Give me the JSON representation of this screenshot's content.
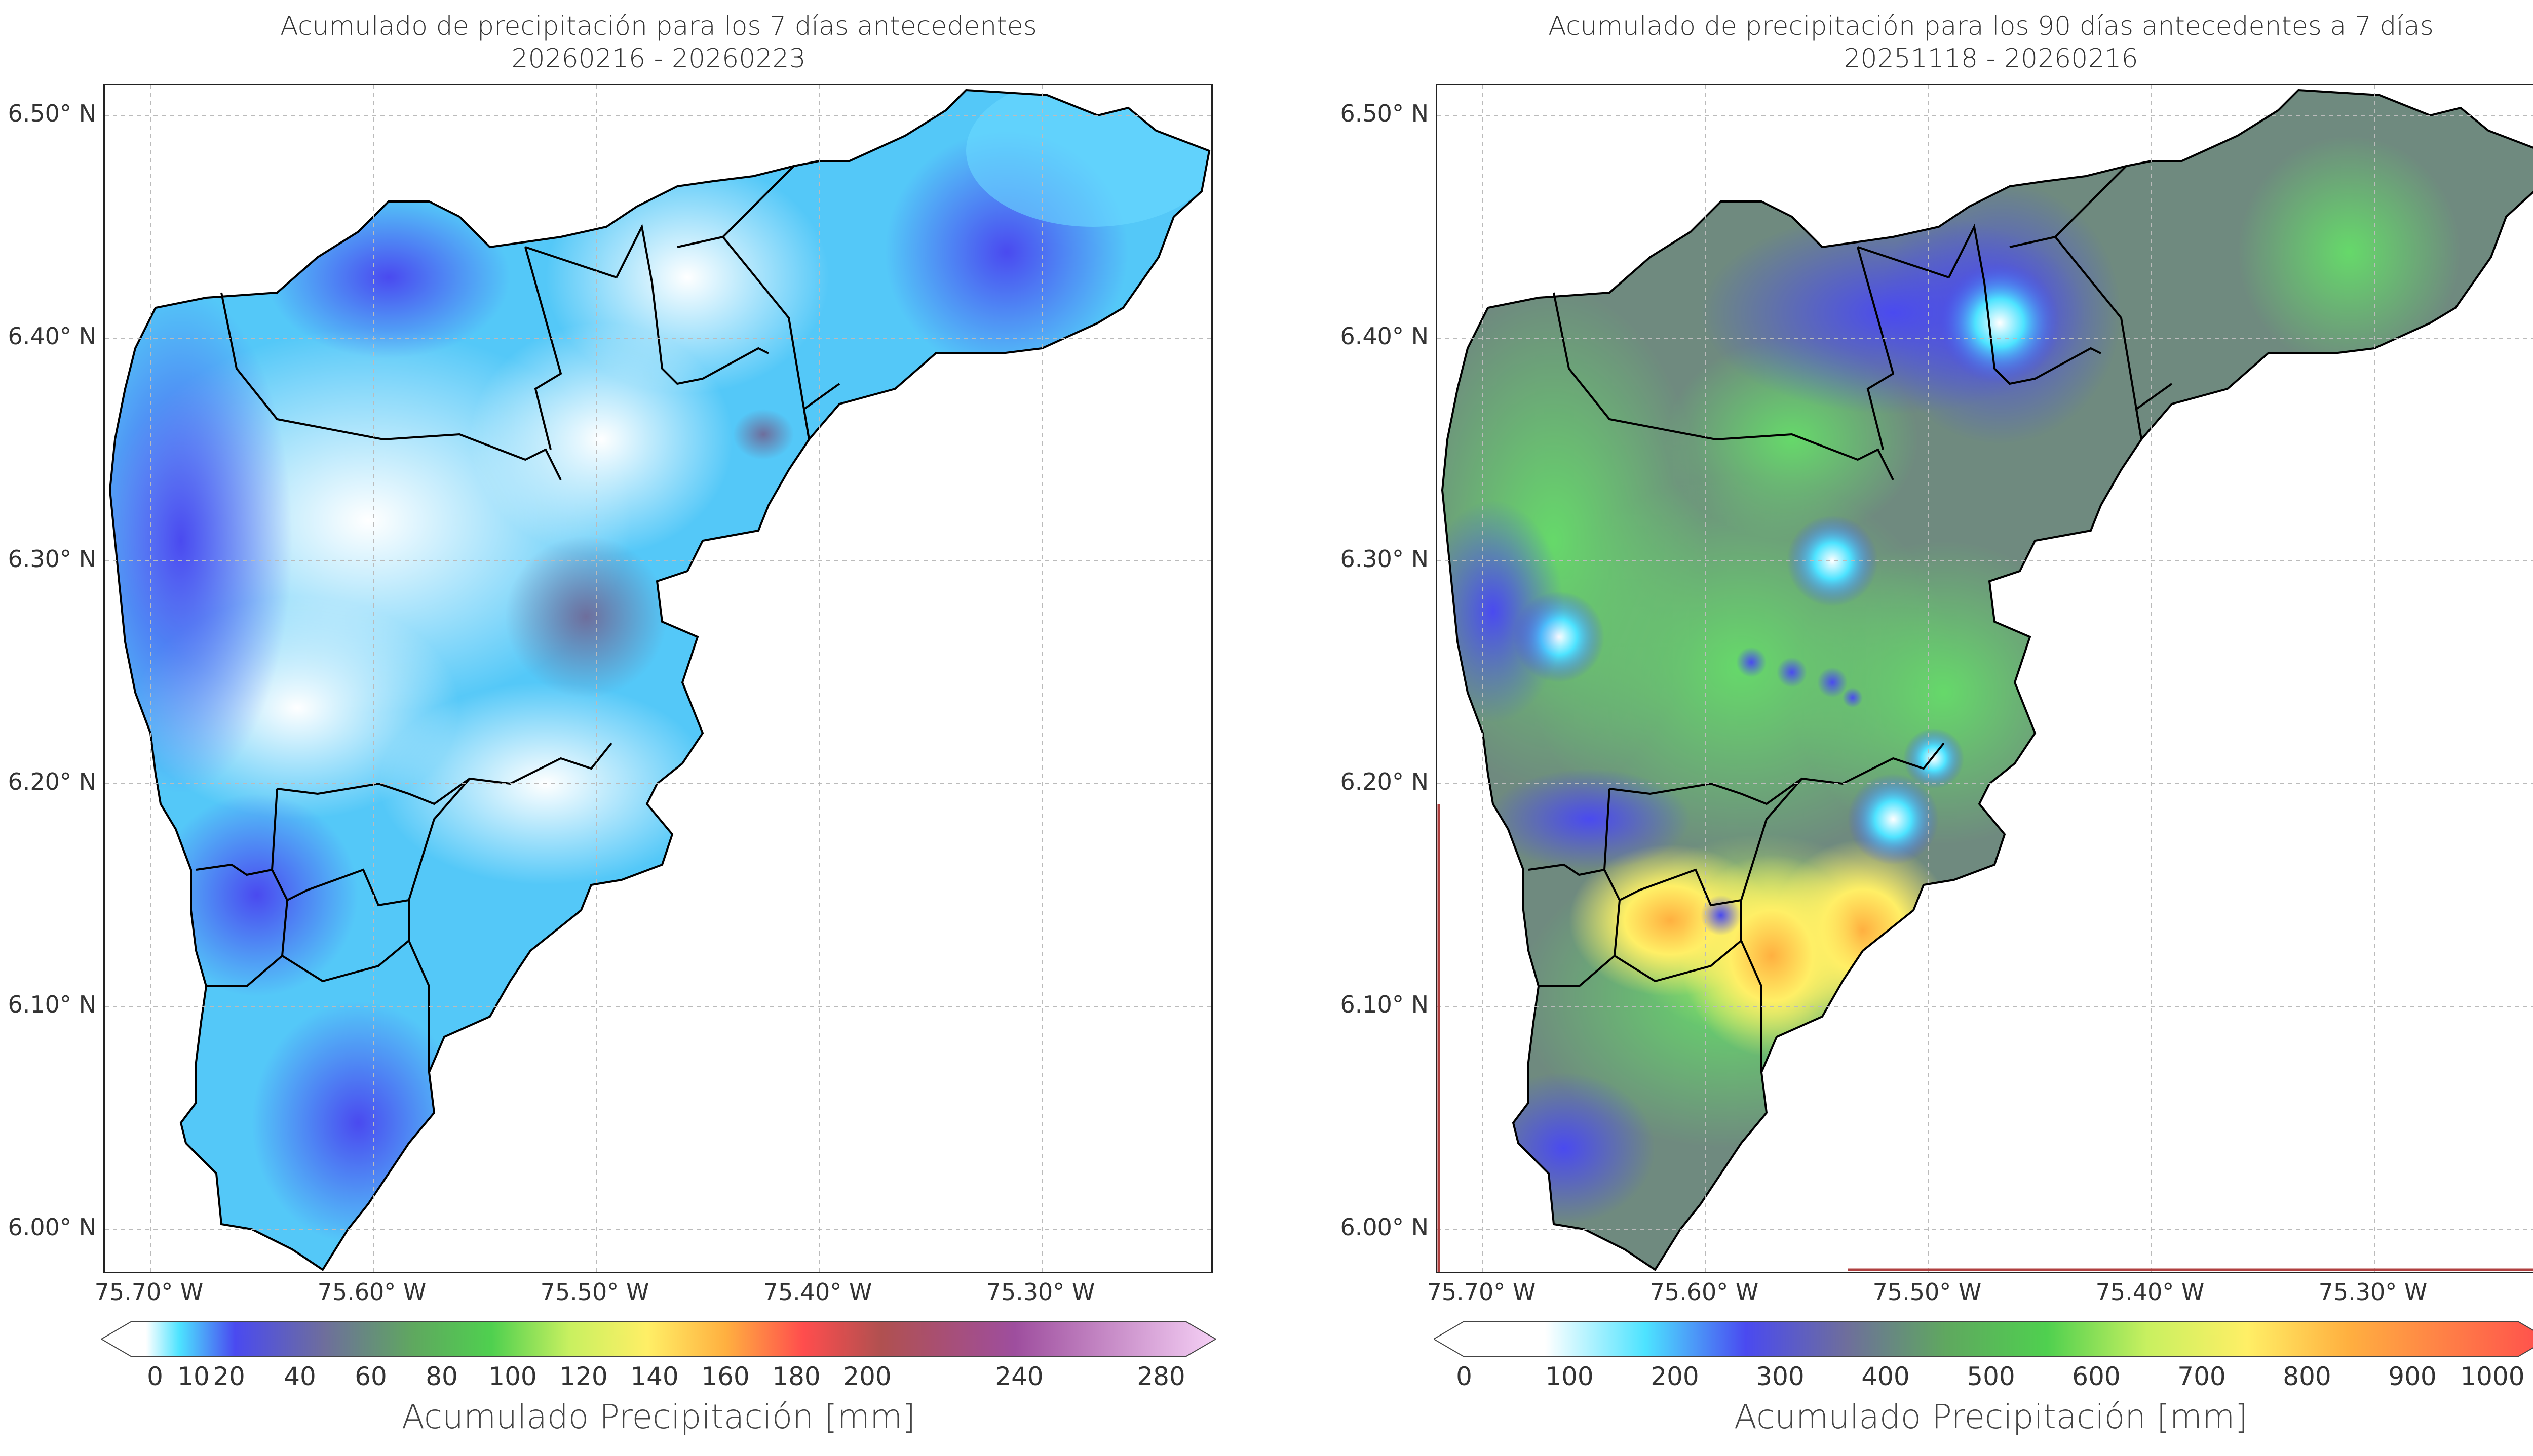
{
  "panels": [
    {
      "title_line1": "Acumulado de precipitación para los 7 días antecedentes",
      "title_line2": "20260216 - 20260223",
      "lat_labels": [
        "6.50° N",
        "6.40° N",
        "6.30° N",
        "6.20° N",
        "6.10° N",
        "6.00° N"
      ],
      "lon_labels": [
        "75.70° W",
        "75.60° W",
        "75.50° W",
        "75.40° W",
        "75.30° W"
      ],
      "colorbar": {
        "ticks": [
          "0",
          "10",
          "20",
          "40",
          "60",
          "80",
          "100",
          "120",
          "140",
          "160",
          "180",
          "200",
          "240",
          "280"
        ],
        "title": "Acumulado Precipitación [mm]",
        "extend": "both",
        "colors": [
          "#ffffff",
          "#4de3ff",
          "#4a4af0",
          "#6e6e9c",
          "#6a9a6a",
          "#4fd04f",
          "#c0f060",
          "#ffff66",
          "#ffc040",
          "#ff9940",
          "#ff4d4d",
          "#b05050",
          "#9e4e9e",
          "#d080d0",
          "#f5d0f5"
        ]
      }
    },
    {
      "title_line1": "Acumulado de precipitación para los 90 días antecedentes a 7 días",
      "title_line2": "20251118 - 20260216",
      "lat_labels": [
        "6.50° N",
        "6.40° N",
        "6.30° N",
        "6.20° N",
        "6.10° N",
        "6.00° N"
      ],
      "lon_labels": [
        "75.70° W",
        "75.60° W",
        "75.50° W",
        "75.40° W",
        "75.30° W"
      ],
      "colorbar": {
        "ticks": [
          "0",
          "100",
          "200",
          "300",
          "400",
          "500",
          "600",
          "700",
          "800",
          "900",
          "1000"
        ],
        "title": "Acumulado Precipitación [mm]",
        "extend": "both",
        "colors": [
          "#ffffff",
          "#ffffff",
          "#4de3ff",
          "#4a4af0",
          "#6e6e9c",
          "#6a9a6a",
          "#4fd04f",
          "#c0f060",
          "#ffff66",
          "#ffc040",
          "#ff4d4d"
        ]
      }
    }
  ]
}
